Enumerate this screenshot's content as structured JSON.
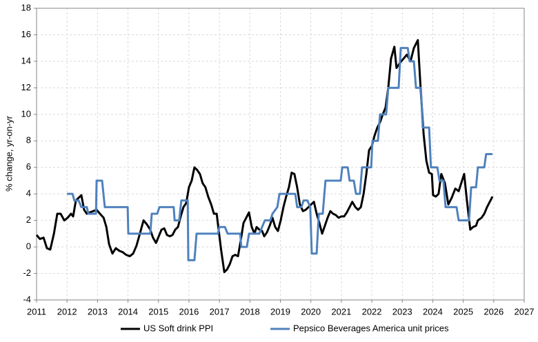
{
  "chart_data": {
    "type": "line",
    "ylabel": "% change, yr-on-yr",
    "xlim": [
      2011,
      2027
    ],
    "xticks": [
      2011,
      2012,
      2013,
      2014,
      2015,
      2016,
      2017,
      2018,
      2019,
      2020,
      2021,
      2022,
      2023,
      2024,
      2025,
      2026,
      2027
    ],
    "ylim": [
      -4,
      18
    ],
    "yticks": [
      -4,
      -2,
      0,
      2,
      4,
      6,
      8,
      10,
      12,
      14,
      16,
      18
    ],
    "grid": true,
    "legend": "bottom",
    "series": [
      {
        "name": "US Soft drink PPI",
        "color": "#000000",
        "x": [
          2011.0,
          2011.11,
          2011.23,
          2011.34,
          2011.45,
          2011.57,
          2011.68,
          2011.79,
          2011.91,
          2012.02,
          2012.13,
          2012.2,
          2012.29,
          2012.38,
          2012.47,
          2012.56,
          2012.65,
          2012.74,
          2012.86,
          2012.97,
          2013.08,
          2013.2,
          2013.29,
          2013.38,
          2013.49,
          2013.6,
          2013.72,
          2013.83,
          2013.94,
          2014.06,
          2014.17,
          2014.28,
          2014.39,
          2014.51,
          2014.62,
          2014.73,
          2014.82,
          2014.92,
          2015.01,
          2015.1,
          2015.19,
          2015.28,
          2015.37,
          2015.46,
          2015.55,
          2015.64,
          2015.73,
          2015.82,
          2015.91,
          2016.0,
          2016.09,
          2016.18,
          2016.27,
          2016.36,
          2016.45,
          2016.54,
          2016.63,
          2016.73,
          2016.82,
          2016.91,
          2017.0,
          2017.06,
          2017.16,
          2017.25,
          2017.34,
          2017.43,
          2017.52,
          2017.61,
          2017.7,
          2017.79,
          2017.88,
          2017.97,
          2018.06,
          2018.15,
          2018.22,
          2018.31,
          2018.4,
          2018.47,
          2018.56,
          2018.65,
          2018.74,
          2018.83,
          2018.92,
          2019.01,
          2019.1,
          2019.19,
          2019.28,
          2019.37,
          2019.46,
          2019.55,
          2019.64,
          2019.74,
          2019.83,
          2019.92,
          2020.01,
          2020.1,
          2020.19,
          2020.28,
          2020.37,
          2020.46,
          2020.55,
          2020.64,
          2020.73,
          2020.82,
          2020.91,
          2021.0,
          2021.09,
          2021.18,
          2021.27,
          2021.36,
          2021.46,
          2021.55,
          2021.64,
          2021.73,
          2021.82,
          2021.91,
          2022.0,
          2022.09,
          2022.18,
          2022.27,
          2022.36,
          2022.45,
          2022.54,
          2022.63,
          2022.74,
          2022.81,
          2022.93,
          2023.04,
          2023.15,
          2023.27,
          2023.38,
          2023.51,
          2023.6,
          2023.7,
          2023.79,
          2023.88,
          2023.97,
          2024.01,
          2024.1,
          2024.19,
          2024.28,
          2024.4,
          2024.51,
          2024.62,
          2024.74,
          2024.85,
          2024.96,
          2025.03,
          2025.12,
          2025.23,
          2025.32,
          2025.42,
          2025.48,
          2025.6,
          2025.69,
          2025.78,
          2025.87,
          2025.96
        ],
        "values": [
          0.9,
          0.6,
          0.7,
          -0.1,
          -0.2,
          1.0,
          2.5,
          2.5,
          2.0,
          2.2,
          2.5,
          2.3,
          3.5,
          3.7,
          3.9,
          2.8,
          2.5,
          2.6,
          2.7,
          2.8,
          2.5,
          2.2,
          1.5,
          0.2,
          -0.5,
          -0.1,
          -0.3,
          -0.4,
          -0.6,
          -0.7,
          -0.5,
          0.1,
          1.0,
          2.0,
          1.7,
          1.3,
          0.7,
          0.3,
          0.8,
          1.3,
          1.4,
          0.9,
          0.8,
          0.9,
          1.3,
          1.5,
          2.3,
          3.0,
          3.3,
          4.5,
          5.0,
          6.0,
          5.8,
          5.5,
          4.8,
          4.5,
          3.8,
          3.2,
          2.5,
          2.5,
          0.8,
          -0.3,
          -1.9,
          -1.7,
          -1.3,
          -0.7,
          -0.6,
          -0.7,
          0.5,
          1.8,
          2.2,
          2.6,
          1.5,
          1.0,
          1.5,
          1.3,
          1.2,
          0.8,
          1.1,
          1.6,
          2.2,
          1.5,
          1.2,
          2.0,
          3.0,
          3.8,
          4.5,
          5.6,
          5.5,
          4.5,
          3.2,
          2.7,
          2.8,
          3.0,
          3.2,
          3.4,
          2.5,
          1.8,
          1.0,
          1.6,
          2.2,
          2.7,
          2.5,
          2.4,
          2.2,
          2.3,
          2.3,
          2.6,
          3.0,
          3.4,
          3.0,
          2.8,
          3.0,
          4.0,
          5.5,
          7.3,
          7.6,
          8.4,
          9.0,
          9.4,
          10.0,
          10.5,
          12.0,
          14.2,
          15.1,
          13.5,
          13.9,
          14.2,
          14.5,
          14.0,
          15.0,
          15.6,
          12.0,
          8.5,
          6.5,
          5.6,
          5.5,
          3.9,
          3.8,
          4.0,
          5.5,
          4.8,
          3.2,
          3.7,
          4.4,
          4.2,
          5.0,
          5.5,
          3.5,
          1.3,
          1.5,
          1.6,
          2.0,
          2.2,
          2.5,
          3.0,
          3.4,
          3.8
        ]
      },
      {
        "name": "Pepsico Beverages America unit prices",
        "color": "#4f81bd",
        "x": [
          2012.0,
          2012.18,
          2012.24,
          2012.38,
          2012.47,
          2012.65,
          2012.7,
          2012.95,
          2012.97,
          2013.15,
          2013.24,
          2013.99,
          2014.01,
          2014.73,
          2014.78,
          2014.96,
          2015.03,
          2015.5,
          2015.53,
          2015.68,
          2015.75,
          2015.96,
          2015.98,
          2016.18,
          2016.25,
          2016.95,
          2017.0,
          2017.18,
          2017.27,
          2017.68,
          2017.72,
          2017.9,
          2017.97,
          2018.31,
          2018.4,
          2018.49,
          2018.67,
          2018.74,
          2018.9,
          2018.97,
          2019.49,
          2019.55,
          2019.69,
          2019.76,
          2019.89,
          2019.98,
          2020.03,
          2020.19,
          2020.26,
          2020.39,
          2020.48,
          2020.98,
          2021.03,
          2021.21,
          2021.27,
          2021.41,
          2021.48,
          2021.61,
          2021.68,
          2021.98,
          2022.02,
          2022.2,
          2022.27,
          2022.47,
          2022.54,
          2022.88,
          2022.95,
          2023.18,
          2023.24,
          2023.38,
          2023.45,
          2023.61,
          2023.67,
          2023.88,
          2023.94,
          2024.15,
          2024.22,
          2024.35,
          2024.42,
          2024.78,
          2024.85,
          2025.19,
          2025.26,
          2025.42,
          2025.48,
          2025.69,
          2025.75,
          2025.96
        ],
        "values": [
          4,
          4,
          3.5,
          3.5,
          3,
          3,
          2.5,
          2.5,
          5,
          5,
          3,
          3,
          1,
          1,
          2.5,
          2.5,
          3,
          3,
          2,
          2,
          3.5,
          3.5,
          -1,
          -1,
          1,
          1,
          1.5,
          1.5,
          1,
          1,
          0,
          0,
          1,
          1,
          1.5,
          2,
          2,
          2.5,
          3,
          4,
          4,
          3,
          3,
          3.5,
          3.5,
          3,
          -0.5,
          -0.5,
          2.5,
          2.5,
          5,
          5,
          6,
          6,
          5,
          5,
          4,
          4,
          6,
          6,
          8,
          8,
          10,
          10,
          12,
          12,
          15,
          15,
          14,
          14,
          12,
          12,
          9,
          9,
          6,
          6,
          5,
          5,
          3,
          3,
          2,
          2,
          4.5,
          4.5,
          6,
          6,
          7,
          7
        ]
      }
    ]
  }
}
